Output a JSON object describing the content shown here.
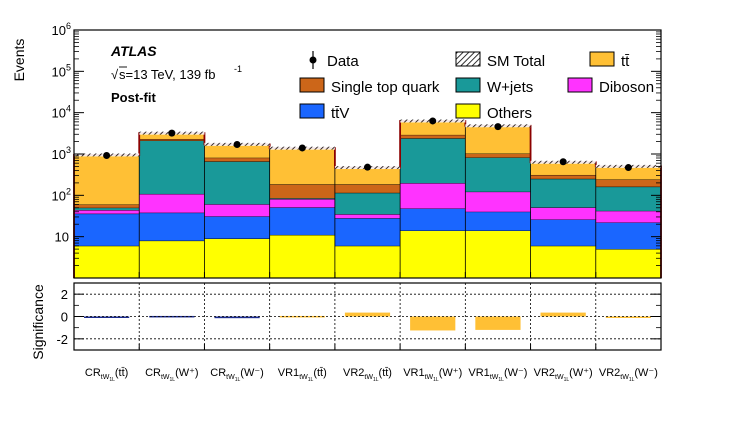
{
  "chart_data": {
    "type": "bar",
    "subtype": "stacked-histogram-with-significance-panel",
    "annotations": {
      "experiment": "ATLAS",
      "energy_prefix": "s=13 TeV, 139 fb",
      "energy_sup": "-1",
      "fit_state": "Post-fit"
    },
    "ylabel": "Events",
    "yscale": "log",
    "ylim": [
      1,
      1000000
    ],
    "yticks": [
      {
        "base": "10",
        "exp": "6"
      },
      {
        "base": "10",
        "exp": "5"
      },
      {
        "base": "10",
        "exp": "4"
      },
      {
        "base": "10",
        "exp": "3"
      },
      {
        "base": "10",
        "exp": "2"
      },
      {
        "base": "10",
        "exp": ""
      }
    ],
    "categories": [
      {
        "main": "CR",
        "sub": "tW",
        "subsub": "1L",
        "suffix": "(tt̄)"
      },
      {
        "main": "CR",
        "sub": "tW",
        "subsub": "1L",
        "suffix": "(W⁺)"
      },
      {
        "main": "CR",
        "sub": "tW",
        "subsub": "1L",
        "suffix": "(W⁻)"
      },
      {
        "main": "VR1",
        "sub": "tW",
        "subsub": "1L",
        "suffix": "(tt̄)"
      },
      {
        "main": "VR2",
        "sub": "tW",
        "subsub": "1L",
        "suffix": "(tt̄)"
      },
      {
        "main": "VR1",
        "sub": "tW",
        "subsub": "1L",
        "suffix": "(W⁺)"
      },
      {
        "main": "VR1",
        "sub": "tW",
        "subsub": "1L",
        "suffix": "(W⁻)"
      },
      {
        "main": "VR2",
        "sub": "tW",
        "subsub": "1L",
        "suffix": "(W⁺)"
      },
      {
        "main": "VR2",
        "sub": "tW",
        "subsub": "1L",
        "suffix": "(W⁻)"
      }
    ],
    "series": [
      {
        "name": "Others",
        "color": "#ffff00",
        "values": [
          6,
          8,
          9,
          11,
          6,
          14,
          14,
          6,
          5
        ]
      },
      {
        "name": "tt̄V",
        "color": "#1a66ff",
        "values": [
          30,
          30,
          22,
          40,
          22,
          34,
          26,
          20,
          17
        ]
      },
      {
        "name": "Diboson",
        "color": "#ff33ff",
        "values": [
          8,
          70,
          30,
          30,
          7,
          150,
          82,
          25,
          20
        ]
      },
      {
        "name": "W+jets",
        "color": "#199999",
        "values": [
          6,
          2000,
          600,
          4,
          80,
          2200,
          700,
          200,
          120
        ]
      },
      {
        "name": "Single top quark",
        "color": "#cc6619",
        "values": [
          10,
          200,
          150,
          100,
          70,
          500,
          200,
          60,
          80
        ]
      },
      {
        "name": "tt̄",
        "color": "#ffc035",
        "values": [
          890,
          890,
          900,
          1200,
          285,
          3400,
          3800,
          320,
          260
        ]
      }
    ],
    "data": {
      "name": "Data",
      "values": [
        920,
        3200,
        1700,
        1400,
        480,
        6300,
        4600,
        650,
        470
      ]
    },
    "sm_total": {
      "name": "SM Total",
      "values": [
        950,
        3200,
        1711,
        1385,
        470,
        6298,
        4822,
        631,
        502
      ]
    },
    "significance": {
      "ylabel": "Significance",
      "ylim": [
        -3,
        3
      ],
      "yticks": [
        "2",
        "0",
        "-2"
      ],
      "values": [
        0.0,
        0.05,
        -0.15,
        0.05,
        0.35,
        -1.25,
        -1.2,
        0.35,
        -0.1
      ],
      "colors": [
        "#1a2a8c",
        "#1a2a8c",
        "#1a2a8c",
        "#ffc035",
        "#ffc035",
        "#ffc035",
        "#ffc035",
        "#ffc035",
        "#ffc035"
      ]
    },
    "legend": {
      "placement": "top-right",
      "data_label": "Data",
      "total_label": "SM Total"
    }
  }
}
